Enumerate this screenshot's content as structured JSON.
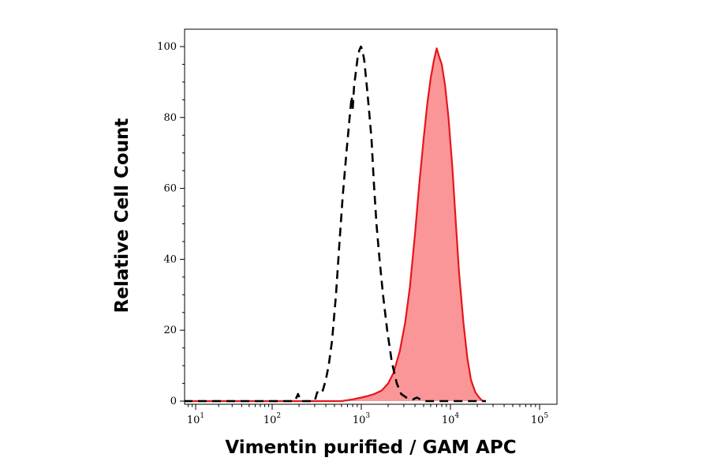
{
  "chart_data": {
    "type": "area",
    "title": "",
    "xlabel": "Vimentin purified / GAM APC",
    "ylabel": "Relative Cell Count",
    "x_scale": "log",
    "xlim": [
      7,
      25000
    ],
    "ylim": [
      0,
      105
    ],
    "x_ticks": [
      {
        "base": "10",
        "exp": "1",
        "value": 10
      },
      {
        "base": "10",
        "exp": "2",
        "value": 100
      },
      {
        "base": "10",
        "exp": "3",
        "value": 1000
      },
      {
        "base": "10",
        "exp": "4",
        "value": 10000
      },
      {
        "base": "10",
        "exp": "5",
        "value": 100000
      }
    ],
    "y_ticks": [
      0,
      20,
      40,
      60,
      80,
      100
    ],
    "grid": false,
    "legend": "none",
    "series": [
      {
        "style": "dashed-outline",
        "color": "#000000",
        "points": [
          [
            7,
            0
          ],
          [
            180,
            0
          ],
          [
            195,
            2
          ],
          [
            210,
            0
          ],
          [
            300,
            0
          ],
          [
            320,
            2.5
          ],
          [
            340,
            2
          ],
          [
            370,
            3
          ],
          [
            400,
            6
          ],
          [
            430,
            10
          ],
          [
            470,
            17
          ],
          [
            520,
            30
          ],
          [
            570,
            45
          ],
          [
            620,
            58
          ],
          [
            680,
            70
          ],
          [
            740,
            80
          ],
          [
            780,
            86
          ],
          [
            800,
            82
          ],
          [
            830,
            89
          ],
          [
            870,
            93
          ],
          [
            910,
            97
          ],
          [
            950,
            99
          ],
          [
            990,
            100
          ],
          [
            1030,
            99
          ],
          [
            1080,
            96
          ],
          [
            1150,
            89
          ],
          [
            1220,
            82
          ],
          [
            1300,
            74
          ],
          [
            1380,
            62
          ],
          [
            1480,
            50
          ],
          [
            1600,
            40
          ],
          [
            1750,
            30
          ],
          [
            1950,
            20
          ],
          [
            2200,
            11
          ],
          [
            2500,
            5
          ],
          [
            2800,
            2
          ],
          [
            3200,
            1
          ],
          [
            3800,
            0.5
          ],
          [
            4200,
            1
          ],
          [
            5000,
            0
          ],
          [
            25000,
            0
          ]
        ]
      },
      {
        "style": "filled",
        "color": "#e8151b",
        "fill": "#fa9698",
        "points": [
          [
            7,
            0
          ],
          [
            600,
            0
          ],
          [
            800,
            0.5
          ],
          [
            1000,
            1
          ],
          [
            1200,
            1.5
          ],
          [
            1400,
            2
          ],
          [
            1700,
            3
          ],
          [
            2000,
            5
          ],
          [
            2300,
            8
          ],
          [
            2700,
            14
          ],
          [
            3100,
            22
          ],
          [
            3500,
            32
          ],
          [
            4000,
            47
          ],
          [
            4500,
            62
          ],
          [
            5000,
            74
          ],
          [
            5500,
            84
          ],
          [
            6000,
            91
          ],
          [
            6500,
            96
          ],
          [
            7000,
            99.5
          ],
          [
            7500,
            97
          ],
          [
            8000,
            95
          ],
          [
            8700,
            89
          ],
          [
            9500,
            80
          ],
          [
            10500,
            66
          ],
          [
            11500,
            50
          ],
          [
            12500,
            36
          ],
          [
            14000,
            22
          ],
          [
            15500,
            12
          ],
          [
            17000,
            6
          ],
          [
            19000,
            2.5
          ],
          [
            21000,
            1
          ],
          [
            23000,
            0
          ],
          [
            25000,
            0
          ]
        ]
      }
    ]
  }
}
